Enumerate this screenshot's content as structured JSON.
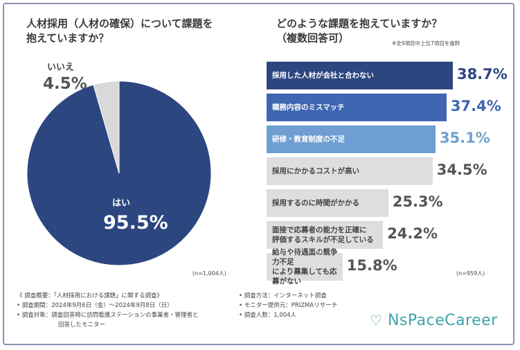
{
  "left_title_1": "人材採用（人材の確保）について課題を",
  "left_title_2": "抱えていますか？",
  "right_title_1": "どのような課題を抱えていますか？",
  "right_title_2": "（複数回答可）",
  "note": "※全9項目中上位7項目を抜粋",
  "pie_n": "(n=1,004人)",
  "bar_n": "(n=959人)",
  "chart_data": [
    {
      "type": "pie",
      "title": "人材採用（人材の確保）について課題を抱えていますか？",
      "slices": [
        {
          "label": "はい",
          "value": 95.5,
          "display": "95.5%",
          "color": "#2c4680"
        },
        {
          "label": "いいえ",
          "value": 4.5,
          "display": "4.5%",
          "color": "#d9d9d9"
        }
      ]
    },
    {
      "type": "bar",
      "orientation": "horizontal",
      "title": "どのような課題を抱えていますか？（複数回答可）",
      "bars": [
        {
          "line1": "採用した人材が会社と合わない",
          "line2": "",
          "value": 38.7,
          "display": "38.7%",
          "color": "#2c4680",
          "text_color": "#ffffff",
          "value_color": "#2c4680"
        },
        {
          "line1": "職務内容のミスマッチ",
          "line2": "",
          "value": 37.4,
          "display": "37.4%",
          "color": "#3f66b0",
          "text_color": "#ffffff",
          "value_color": "#3f66b0"
        },
        {
          "line1": "研修・教育制度の不足",
          "line2": "",
          "value": 35.1,
          "display": "35.1%",
          "color": "#6f9fd2",
          "text_color": "#ffffff",
          "value_color": "#6f9fd2"
        },
        {
          "line1": "採用にかかるコストが高い",
          "line2": "",
          "value": 34.5,
          "display": "34.5%",
          "color": "#dedede",
          "text_color": "#444444",
          "value_color": "#555555"
        },
        {
          "line1": "採用するのに時間がかかる",
          "line2": "",
          "value": 25.3,
          "display": "25.3%",
          "color": "#dedede",
          "text_color": "#444444",
          "value_color": "#555555"
        },
        {
          "line1": "面接で応募者の能力を正確に",
          "line2": "評価するスキルが不足している",
          "value": 24.2,
          "display": "24.2%",
          "color": "#dedede",
          "text_color": "#444444",
          "value_color": "#555555"
        },
        {
          "line1": "給与や待遇面の競争力不足",
          "line2": "により募集しても応募がない",
          "value": 15.8,
          "display": "15.8%",
          "color": "#dedede",
          "text_color": "#444444",
          "value_color": "#555555"
        }
      ]
    }
  ],
  "footer": {
    "l1": "《 調査概要：「人材採用における課題」に関する調査》",
    "l2": "• 調査期間：2024年9月6日（金）〜2024年9月8日（日）",
    "l3": "• 調査対象：調査回答時に訪問看護ステーションの事業者・管理者と",
    "l4": "回答したモニター",
    "r1": "• 調査方法：インターネット調査",
    "r2": "• モニター提供元：PRIZMAリサーチ",
    "r3": "• 調査人数：1,004人"
  },
  "logo_text": "NsPaceCareer",
  "colors": {
    "brand": "#3fa3a8",
    "navy": "#2c4680"
  }
}
